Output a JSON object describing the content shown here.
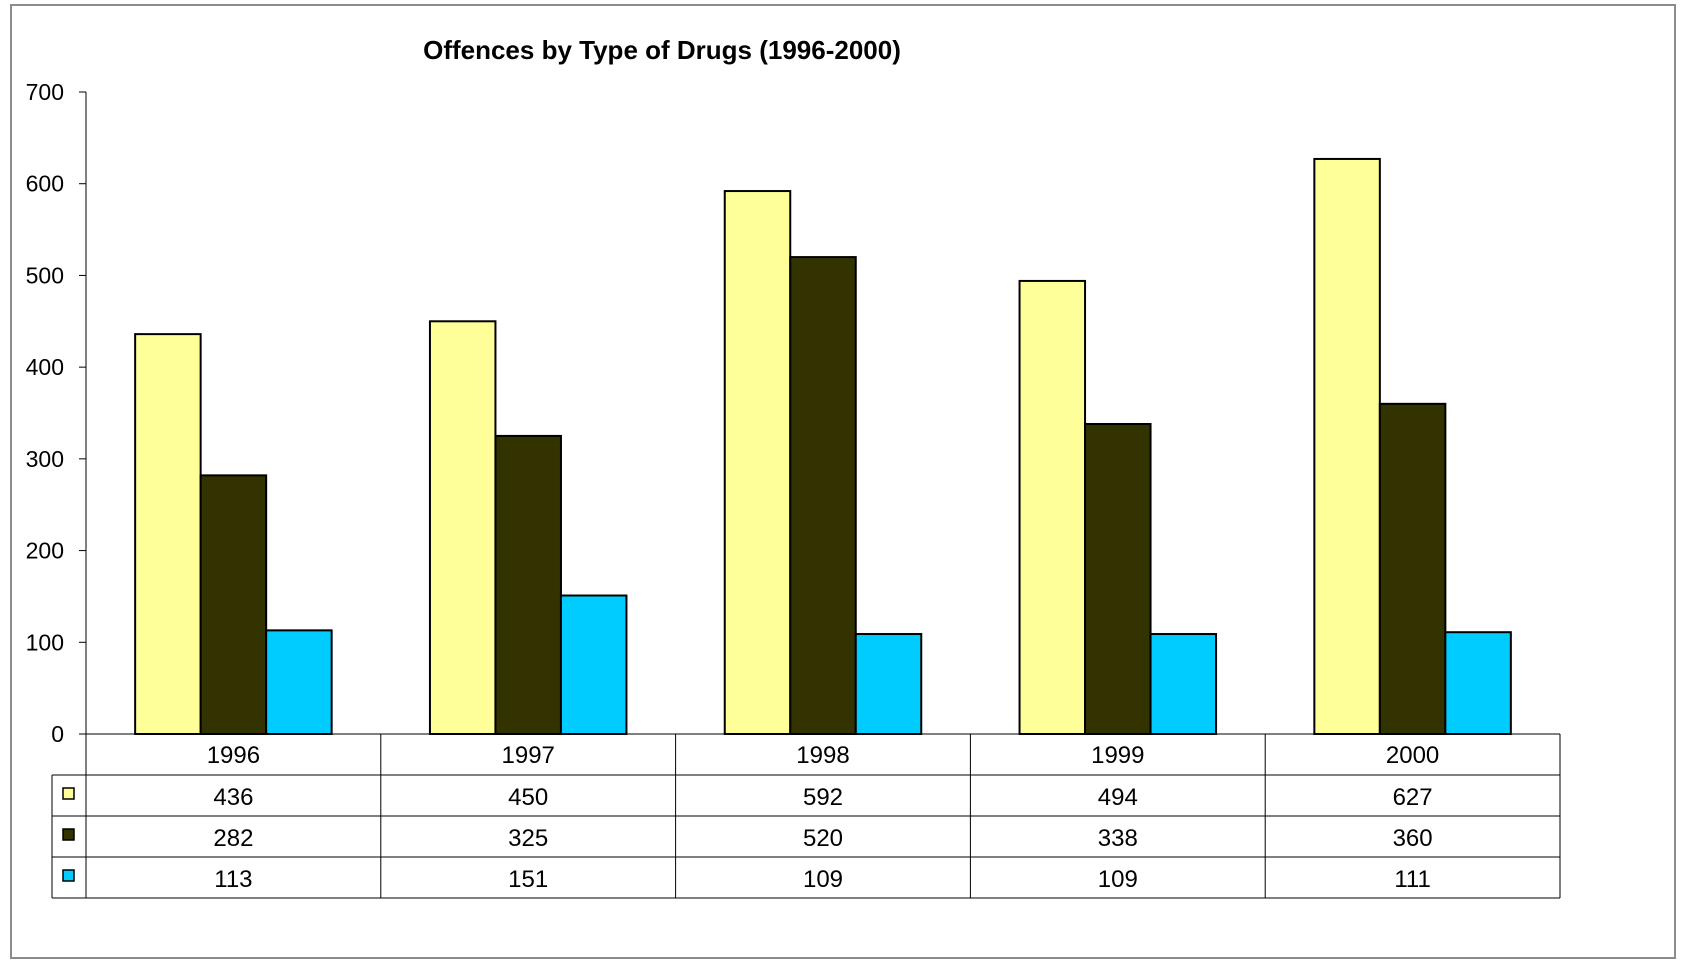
{
  "chart_data": {
    "type": "bar",
    "title": "Offences by Type of Drugs (1996-2000)",
    "xlabel": "",
    "ylabel": "",
    "ylim": [
      0,
      700
    ],
    "yticks": [
      0,
      100,
      200,
      300,
      400,
      500,
      600,
      700
    ],
    "grid": false,
    "legend": "data-table-left",
    "categories": [
      "1996",
      "1997",
      "1998",
      "1999",
      "2000"
    ],
    "series": [
      {
        "color": "#ffff99",
        "values": [
          436,
          450,
          592,
          494,
          627
        ]
      },
      {
        "color": "#333300",
        "values": [
          282,
          325,
          520,
          338,
          360
        ]
      },
      {
        "color": "#00ccff",
        "values": [
          113,
          151,
          109,
          109,
          111
        ]
      }
    ],
    "data_table": true
  }
}
